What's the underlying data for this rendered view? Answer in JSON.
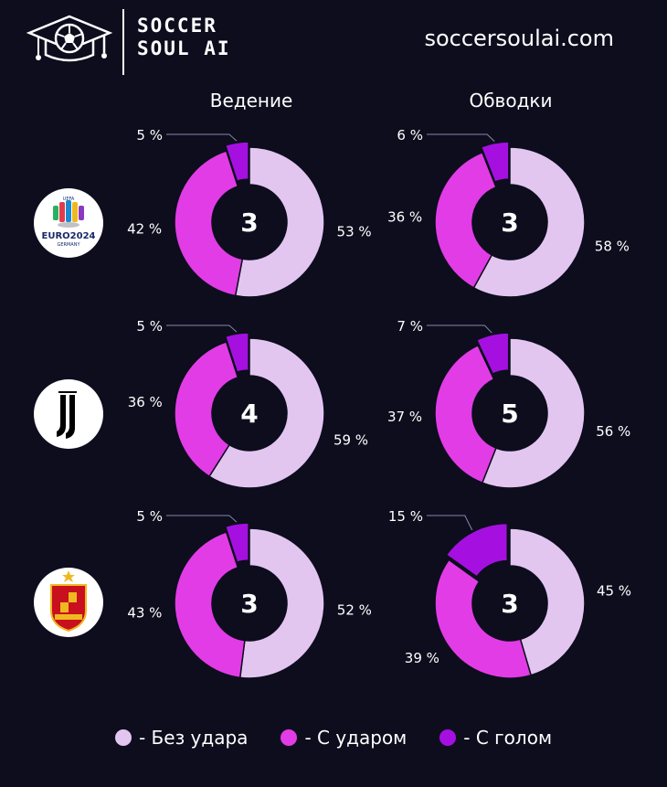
{
  "brand": {
    "logo_line1": "SOCCER",
    "logo_line2": "SOUL AI",
    "website": "soccersoulai.com",
    "icon": "soccer-ball-graduation-cap-icon"
  },
  "colors": {
    "background": "#0d0d1e",
    "no_shot": "#e2c6f0",
    "with_shot": "#e23ce6",
    "with_goal": "#a510e0",
    "center": "#0d0d1e"
  },
  "columns": [
    "Ведение",
    "Обводки"
  ],
  "rows": [
    {
      "team": "Euro 2024",
      "badge_icon": "euro-2024-badge-icon",
      "badge_text": "EURO2024",
      "badge_sub": "GERMANY",
      "badge_uefa": "UEFA"
    },
    {
      "team": "Juventus",
      "badge_icon": "juventus-badge-icon"
    },
    {
      "team": "Spain",
      "badge_icon": "spain-federation-badge-icon"
    }
  ],
  "chart_data": [
    {
      "type": "pie",
      "row": 0,
      "column": "Ведение",
      "center_value": "3",
      "labels": [
        "53 %",
        "42 %",
        "5 %"
      ],
      "values": [
        53,
        42,
        5
      ]
    },
    {
      "type": "pie",
      "row": 0,
      "column": "Обводки",
      "center_value": "3",
      "labels": [
        "58 %",
        "36 %",
        "6 %"
      ],
      "values": [
        58,
        36,
        6
      ]
    },
    {
      "type": "pie",
      "row": 1,
      "column": "Ведение",
      "center_value": "4",
      "labels": [
        "59 %",
        "36 %",
        "5 %"
      ],
      "values": [
        59,
        36,
        5
      ]
    },
    {
      "type": "pie",
      "row": 1,
      "column": "Обводки",
      "center_value": "5",
      "labels": [
        "56 %",
        "37 %",
        "7 %"
      ],
      "values": [
        56,
        37,
        7
      ]
    },
    {
      "type": "pie",
      "row": 2,
      "column": "Ведение",
      "center_value": "3",
      "labels": [
        "52 %",
        "43 %",
        "5 %"
      ],
      "values": [
        52,
        43,
        5
      ]
    },
    {
      "type": "pie",
      "row": 2,
      "column": "Обводки",
      "center_value": "3",
      "labels": [
        "45 %",
        "39 %",
        "15 %"
      ],
      "values": [
        45,
        39,
        15
      ]
    }
  ],
  "legend": [
    {
      "label": "- Без удара",
      "color": "#e2c6f0"
    },
    {
      "label": "- С ударом",
      "color": "#e23ce6"
    },
    {
      "label": "- С голом",
      "color": "#a510e0"
    }
  ]
}
